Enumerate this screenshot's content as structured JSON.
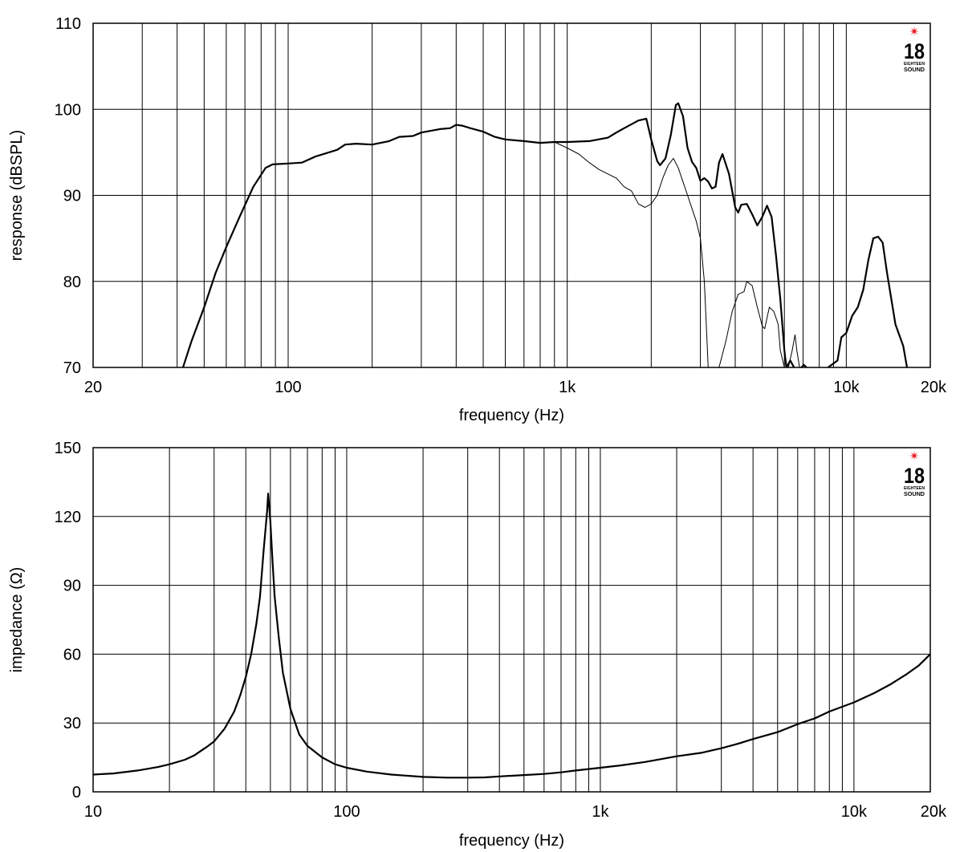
{
  "colors": {
    "background": "#ffffff",
    "line": "#000000",
    "logo_star": "#e8141c"
  },
  "logo": {
    "number": "18",
    "small": "EIGHTEEN",
    "word": "SOUND"
  },
  "chart_data": [
    {
      "type": "line",
      "title": "",
      "xlabel": "frequency (Hz)",
      "ylabel": "response (dBSPL)",
      "xscale": "log",
      "xlim": [
        20,
        20000
      ],
      "ylim": [
        70,
        110
      ],
      "x_tick_labels": [
        {
          "value": 20,
          "label": "20"
        },
        {
          "value": 100,
          "label": "100"
        },
        {
          "value": 1000,
          "label": "1k"
        },
        {
          "value": 10000,
          "label": "10k"
        },
        {
          "value": 20000,
          "label": "20k"
        }
      ],
      "y_ticks": [
        70,
        80,
        90,
        100,
        110
      ],
      "grid": true,
      "series": [
        {
          "style": "thick",
          "segments": [
            [
              [
                42,
                70
              ],
              [
                45,
                73
              ],
              [
                50,
                77
              ],
              [
                55,
                81
              ],
              [
                60,
                84
              ],
              [
                67,
                87.5
              ],
              [
                75,
                91
              ],
              [
                83,
                93.2
              ],
              [
                88,
                93.6
              ],
              [
                100,
                93.7
              ],
              [
                112,
                93.8
              ],
              [
                125,
                94.5
              ],
              [
                140,
                95
              ],
              [
                150,
                95.3
              ],
              [
                160,
                95.9
              ],
              [
                175,
                96
              ],
              [
                200,
                95.9
              ],
              [
                230,
                96.3
              ],
              [
                250,
                96.8
              ],
              [
                280,
                96.9
              ],
              [
                300,
                97.3
              ],
              [
                350,
                97.7
              ],
              [
                380,
                97.8
              ],
              [
                400,
                98.2
              ],
              [
                420,
                98.1
              ],
              [
                450,
                97.8
              ],
              [
                500,
                97.4
              ],
              [
                550,
                96.8
              ],
              [
                600,
                96.5
              ],
              [
                650,
                96.4
              ],
              [
                700,
                96.3
              ],
              [
                800,
                96.1
              ],
              [
                900,
                96.2
              ],
              [
                1000,
                96.2
              ],
              [
                1200,
                96.3
              ],
              [
                1400,
                96.7
              ],
              [
                1500,
                97.3
              ],
              [
                1600,
                97.8
              ],
              [
                1800,
                98.7
              ],
              [
                1920,
                98.9
              ],
              [
                2000,
                96.5
              ],
              [
                2100,
                94
              ],
              [
                2150,
                93.5
              ],
              [
                2250,
                94.3
              ],
              [
                2350,
                97
              ],
              [
                2450,
                100.5
              ],
              [
                2500,
                100.7
              ],
              [
                2600,
                99.2
              ],
              [
                2700,
                95.5
              ],
              [
                2800,
                93.9
              ],
              [
                2900,
                93.2
              ],
              [
                3000,
                91.7
              ],
              [
                3100,
                92
              ],
              [
                3200,
                91.6
              ],
              [
                3300,
                90.8
              ],
              [
                3400,
                91
              ],
              [
                3500,
                93.8
              ],
              [
                3600,
                94.8
              ],
              [
                3800,
                92.5
              ],
              [
                4000,
                88.6
              ],
              [
                4100,
                88
              ],
              [
                4200,
                88.9
              ],
              [
                4400,
                89
              ],
              [
                4600,
                87.8
              ],
              [
                4800,
                86.5
              ],
              [
                5000,
                87.5
              ],
              [
                5200,
                88.8
              ],
              [
                5400,
                87.5
              ],
              [
                5600,
                83
              ],
              [
                5800,
                78
              ],
              [
                6000,
                72
              ],
              [
                6100,
                70
              ],
              [
                6300,
                70.8
              ],
              [
                6500,
                70
              ]
            ],
            [
              [
                6900,
                70
              ],
              [
                7050,
                70.3
              ],
              [
                7200,
                70
              ]
            ],
            [
              [
                8600,
                70
              ],
              [
                9300,
                70.8
              ],
              [
                9600,
                73.5
              ],
              [
                10000,
                74
              ],
              [
                10500,
                76
              ],
              [
                11000,
                77
              ],
              [
                11500,
                79
              ],
              [
                12000,
                82.5
              ],
              [
                12500,
                85
              ],
              [
                13000,
                85.2
              ],
              [
                13500,
                84.5
              ],
              [
                14000,
                81
              ],
              [
                15000,
                75
              ],
              [
                16000,
                72.5
              ],
              [
                16500,
                70
              ]
            ]
          ]
        },
        {
          "style": "thin",
          "segments": [
            [
              [
                900,
                96.2
              ],
              [
                1000,
                95.5
              ],
              [
                1100,
                94.8
              ],
              [
                1200,
                93.8
              ],
              [
                1300,
                93
              ],
              [
                1500,
                92
              ],
              [
                1600,
                91
              ],
              [
                1700,
                90.5
              ],
              [
                1800,
                89
              ],
              [
                1900,
                88.6
              ],
              [
                2000,
                89
              ],
              [
                2100,
                90
              ],
              [
                2200,
                92
              ],
              [
                2300,
                93.5
              ],
              [
                2400,
                94.3
              ],
              [
                2500,
                93.2
              ],
              [
                2700,
                90
              ],
              [
                2900,
                87
              ],
              [
                3000,
                85
              ],
              [
                3100,
                80
              ],
              [
                3200,
                70
              ]
            ],
            [
              [
                3500,
                70
              ],
              [
                3700,
                73
              ],
              [
                3900,
                76.5
              ],
              [
                4100,
                78.5
              ],
              [
                4300,
                78.8
              ],
              [
                4400,
                80
              ],
              [
                4600,
                79.5
              ],
              [
                4800,
                77
              ],
              [
                5000,
                74.8
              ],
              [
                5100,
                74.5
              ],
              [
                5300,
                77
              ],
              [
                5500,
                76.5
              ],
              [
                5700,
                75
              ],
              [
                5800,
                72
              ],
              [
                6000,
                70
              ]
            ],
            [
              [
                6200,
                70
              ],
              [
                6400,
                72
              ],
              [
                6550,
                73.8
              ],
              [
                6650,
                72
              ],
              [
                6800,
                70
              ]
            ]
          ]
        }
      ]
    },
    {
      "type": "line",
      "title": "",
      "xlabel": "frequency (Hz)",
      "ylabel": "impedance (Ω)",
      "xscale": "log",
      "xlim": [
        10,
        20000
      ],
      "ylim": [
        0,
        150
      ],
      "x_tick_labels": [
        {
          "value": 10,
          "label": "10"
        },
        {
          "value": 100,
          "label": "100"
        },
        {
          "value": 1000,
          "label": "1k"
        },
        {
          "value": 10000,
          "label": "10k"
        },
        {
          "value": 20000,
          "label": "20k"
        }
      ],
      "y_ticks": [
        0,
        30,
        60,
        90,
        120,
        150
      ],
      "grid": true,
      "series": [
        {
          "style": "thick",
          "segments": [
            [
              [
                10,
                7.5
              ],
              [
                12,
                8
              ],
              [
                15,
                9.3
              ],
              [
                18,
                10.8
              ],
              [
                20,
                12
              ],
              [
                23,
                14
              ],
              [
                25,
                15.8
              ],
              [
                28,
                19.5
              ],
              [
                30,
                22
              ],
              [
                33,
                27.5
              ],
              [
                36,
                35
              ],
              [
                38,
                42
              ],
              [
                40,
                50
              ],
              [
                42,
                60
              ],
              [
                44,
                73
              ],
              [
                45.5,
                85
              ],
              [
                47,
                105
              ],
              [
                48.5,
                122
              ],
              [
                49,
                130
              ],
              [
                50,
                118
              ],
              [
                51,
                100
              ],
              [
                52,
                85
              ],
              [
                54,
                67
              ],
              [
                56,
                52
              ],
              [
                60,
                36
              ],
              [
                65,
                25
              ],
              [
                70,
                20
              ],
              [
                80,
                15
              ],
              [
                90,
                12
              ],
              [
                100,
                10.5
              ],
              [
                120,
                8.8
              ],
              [
                150,
                7.5
              ],
              [
                200,
                6.5
              ],
              [
                250,
                6.2
              ],
              [
                300,
                6.2
              ],
              [
                350,
                6.3
              ],
              [
                400,
                6.7
              ],
              [
                500,
                7.3
              ],
              [
                600,
                7.8
              ],
              [
                700,
                8.5
              ],
              [
                800,
                9.3
              ],
              [
                1000,
                10.5
              ],
              [
                1200,
                11.5
              ],
              [
                1500,
                13
              ],
              [
                2000,
                15.5
              ],
              [
                2500,
                17
              ],
              [
                3000,
                19
              ],
              [
                3500,
                21
              ],
              [
                4000,
                23
              ],
              [
                5000,
                26
              ],
              [
                6000,
                29.5
              ],
              [
                7000,
                32
              ],
              [
                8000,
                35
              ],
              [
                10000,
                39
              ],
              [
                12000,
                43
              ],
              [
                14000,
                47
              ],
              [
                16000,
                51
              ],
              [
                18000,
                55
              ],
              [
                20000,
                60
              ]
            ]
          ]
        }
      ]
    }
  ]
}
